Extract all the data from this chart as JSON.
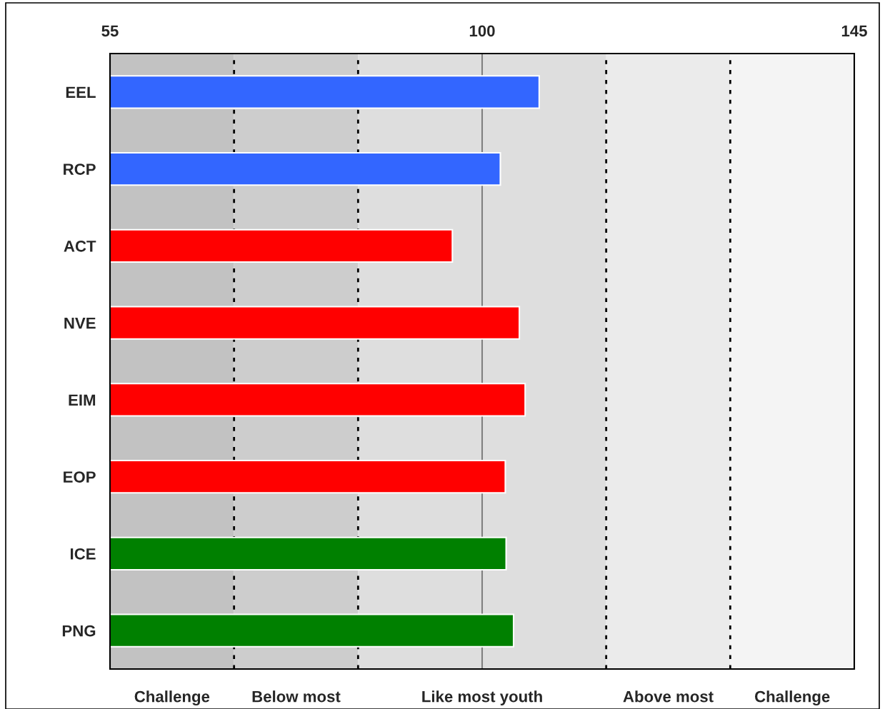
{
  "chart_data": {
    "type": "bar",
    "orientation": "horizontal",
    "categories": [
      "EEL",
      "RCP",
      "ACT",
      "NVE",
      "EIM",
      "EOP",
      "ICE",
      "PNG"
    ],
    "values": [
      106.9,
      102.2,
      96.4,
      104.5,
      105.2,
      102.8,
      102.9,
      103.8
    ],
    "colors": [
      "#3366ff",
      "#3366ff",
      "#ff0000",
      "#ff0000",
      "#ff0000",
      "#ff0000",
      "#008000",
      "#008000"
    ],
    "xlim": [
      55,
      145
    ],
    "xticks": [
      55,
      100,
      145
    ],
    "grid": "x",
    "legend": false,
    "bands": [
      {
        "axis": "x",
        "from": 55,
        "to": 70,
        "label": "Challenge",
        "color": "#c2c2c2"
      },
      {
        "axis": "x",
        "from": 70,
        "to": 85,
        "label": "Below most",
        "color": "#cdcdcd"
      },
      {
        "axis": "x",
        "from": 85,
        "to": 115,
        "label": "Like most youth",
        "color": "#dedede"
      },
      {
        "axis": "x",
        "from": 115,
        "to": 130,
        "label": "Above most",
        "color": "#ebebeb"
      },
      {
        "axis": "x",
        "from": 130,
        "to": 145,
        "label": "Challenge",
        "color": "#f4f4f4"
      }
    ],
    "ref_lines": [
      {
        "axis": "x",
        "value": 70,
        "color": "#000000",
        "line_style": "dotted"
      },
      {
        "axis": "x",
        "value": 85,
        "color": "#000000",
        "line_style": "dotted"
      },
      {
        "axis": "x",
        "value": 115,
        "color": "#000000",
        "line_style": "dotted"
      },
      {
        "axis": "x",
        "value": 130,
        "color": "#000000",
        "line_style": "dotted"
      }
    ]
  }
}
